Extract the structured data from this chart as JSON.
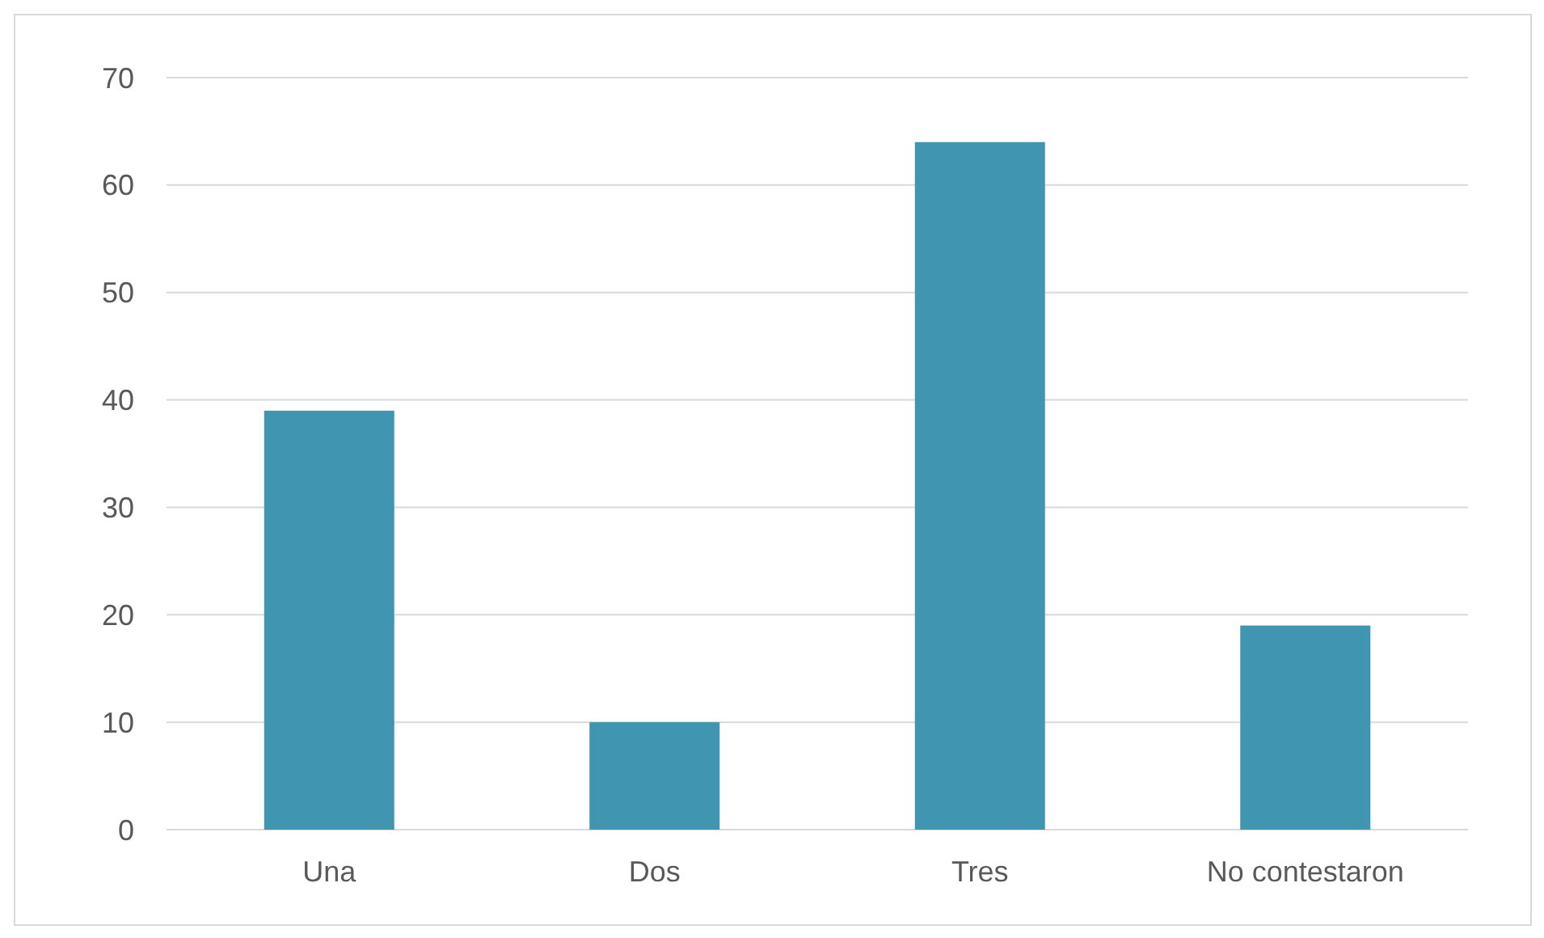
{
  "chart_data": {
    "type": "bar",
    "categories": [
      "Una",
      "Dos",
      "Tres",
      "No contestaron"
    ],
    "values": [
      39,
      10,
      64,
      19
    ],
    "color": "#4096b0",
    "ylim": [
      0,
      70
    ],
    "yticks": [
      0,
      10,
      20,
      30,
      40,
      50,
      60,
      70
    ],
    "grid": "y"
  }
}
